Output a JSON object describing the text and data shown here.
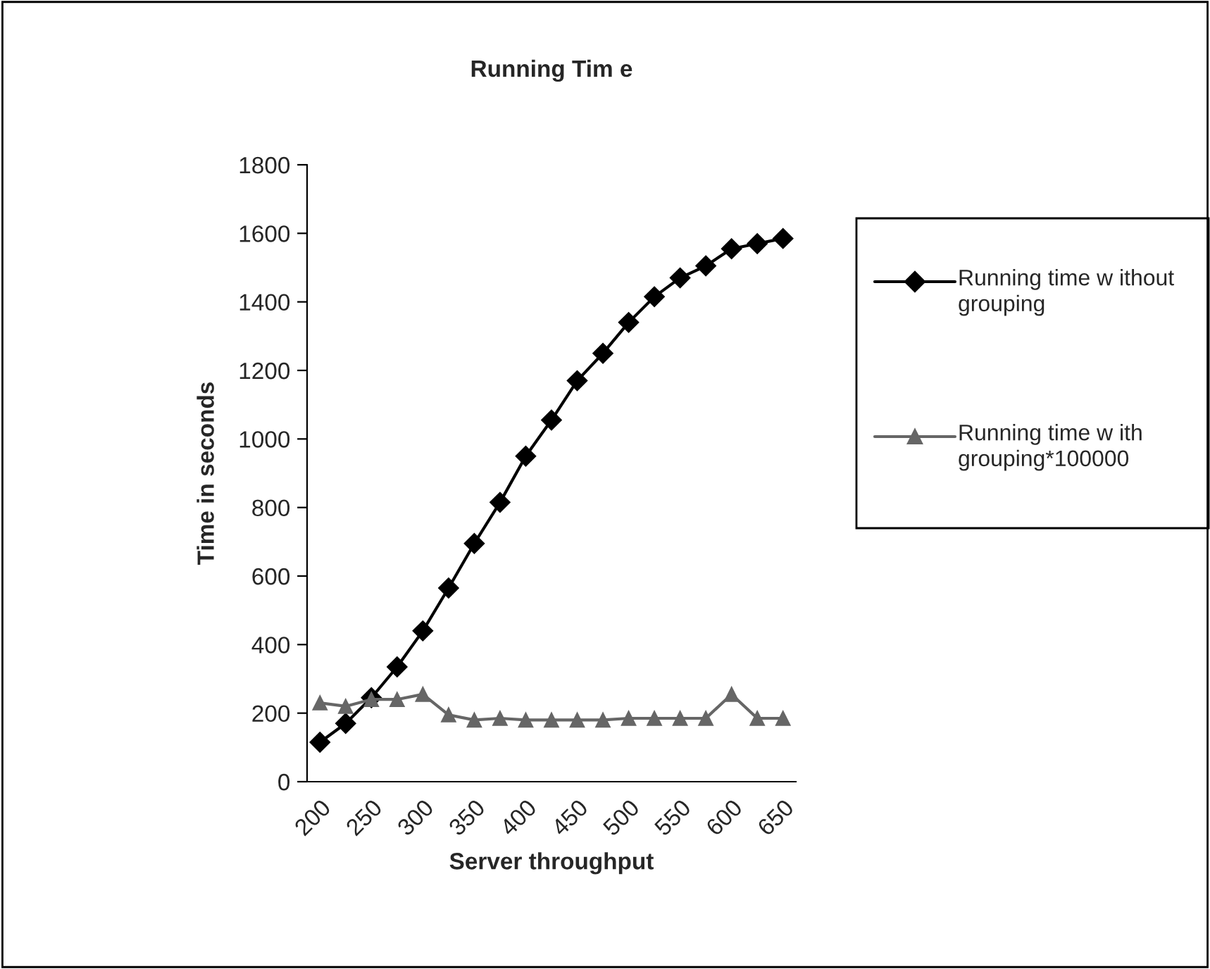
{
  "chart_data": {
    "type": "line",
    "title": "Running Tim e",
    "xlabel": "Server throughput",
    "ylabel": "Time in seconds",
    "categories": [
      "200",
      null,
      "250",
      null,
      "300",
      null,
      "350",
      null,
      "400",
      null,
      "450",
      null,
      "500",
      null,
      "550",
      null,
      "600",
      null,
      "650"
    ],
    "series": [
      {
        "name": "Running time w ithout grouping",
        "color": "#000000",
        "marker": "diamond",
        "values": [
          115,
          170,
          245,
          335,
          440,
          565,
          695,
          815,
          950,
          1055,
          1170,
          1250,
          1340,
          1415,
          1470,
          1505,
          1555,
          1570,
          1585
        ]
      },
      {
        "name": "Running time w ith grouping*100000",
        "color": "#666666",
        "marker": "triangle",
        "values": [
          230,
          220,
          240,
          240,
          255,
          195,
          180,
          185,
          180,
          180,
          180,
          180,
          185,
          185,
          185,
          185,
          255,
          185,
          185
        ]
      }
    ],
    "ylim": [
      0,
      1800
    ],
    "yticks": [
      0,
      200,
      400,
      600,
      800,
      1000,
      1200,
      1400,
      1600,
      1800
    ],
    "grid": false,
    "legend": "right",
    "line_style": "solid"
  }
}
